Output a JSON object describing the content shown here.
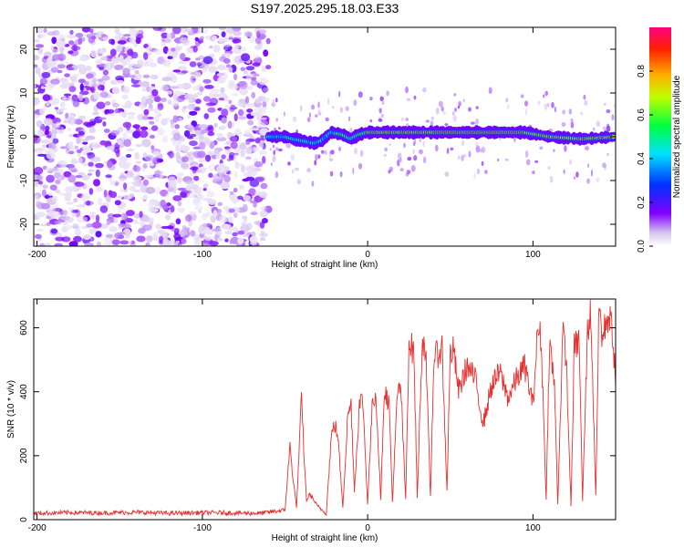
{
  "title": "S197.2025.295.18.03.E33",
  "chart_data": [
    {
      "type": "heatmap",
      "xlabel": "Height of straight line (km)",
      "ylabel": "Frequency (Hz)",
      "xlim": [
        -202,
        150
      ],
      "ylim": [
        -25,
        25
      ],
      "xticks": [
        -200,
        -100,
        0,
        100
      ],
      "yticks": [
        -20,
        -10,
        0,
        10,
        20
      ],
      "noise_region_x": [
        -202,
        -60
      ],
      "signal_ridge": [
        {
          "x": -60,
          "f": 0.0
        },
        {
          "x": -50,
          "f": 0.0
        },
        {
          "x": -45,
          "f": -0.5
        },
        {
          "x": -38,
          "f": -1.0
        },
        {
          "x": -32,
          "f": -1.5
        },
        {
          "x": -28,
          "f": -1.0
        },
        {
          "x": -22,
          "f": 1.0
        },
        {
          "x": -15,
          "f": 0.5
        },
        {
          "x": -10,
          "f": -0.5
        },
        {
          "x": -5,
          "f": 0.5
        },
        {
          "x": 0,
          "f": 1.0
        },
        {
          "x": 20,
          "f": 1.0
        },
        {
          "x": 60,
          "f": 1.0
        },
        {
          "x": 95,
          "f": 1.0
        },
        {
          "x": 110,
          "f": 0.0
        },
        {
          "x": 130,
          "f": -0.5
        },
        {
          "x": 150,
          "f": 0.0
        }
      ],
      "colorbar": {
        "label": "Normalized spectral amplitude",
        "ticks": [
          0.0,
          0.2,
          0.4,
          0.6,
          0.8
        ],
        "tick_labels": [
          "0.0",
          "0.2",
          "0.4",
          "0.6",
          "0.8"
        ],
        "range": [
          0,
          1
        ]
      }
    },
    {
      "type": "line",
      "xlabel": "Height of straight line (km)",
      "ylabel": "SNR (10 * v/v)",
      "xlim": [
        -202,
        150
      ],
      "ylim": [
        0,
        690
      ],
      "xticks": [
        -200,
        -100,
        0,
        100
      ],
      "yticks": [
        0,
        200,
        400,
        600
      ],
      "color": "#e8302f",
      "series": [
        {
          "name": "SNR",
          "x": [
            -202,
            -180,
            -160,
            -140,
            -120,
            -100,
            -80,
            -65,
            -50,
            -47,
            -45,
            -43,
            -40,
            -38,
            -37,
            -35,
            -30,
            -25,
            -22,
            -20,
            -18,
            -15,
            -12,
            -10,
            -8,
            -5,
            -3,
            0,
            3,
            5,
            8,
            10,
            13,
            15,
            18,
            20,
            23,
            25,
            28,
            30,
            33,
            35,
            38,
            40,
            45,
            48,
            50,
            52,
            55,
            60,
            65,
            70,
            75,
            80,
            85,
            90,
            95,
            100,
            103,
            105,
            108,
            110,
            113,
            115,
            118,
            120,
            123,
            125,
            128,
            130,
            133,
            135,
            138,
            140,
            142,
            145,
            148,
            150
          ],
          "y": [
            20,
            22,
            21,
            23,
            20,
            22,
            21,
            20,
            30,
            230,
            120,
            40,
            380,
            150,
            60,
            80,
            40,
            20,
            260,
            300,
            260,
            40,
            330,
            360,
            90,
            360,
            380,
            50,
            380,
            390,
            60,
            410,
            360,
            55,
            390,
            420,
            60,
            560,
            520,
            65,
            560,
            540,
            70,
            500,
            540,
            90,
            520,
            530,
            400,
            480,
            440,
            300,
            420,
            460,
            380,
            440,
            480,
            360,
            600,
            560,
            60,
            560,
            420,
            50,
            580,
            520,
            40,
            540,
            560,
            60,
            590,
            650,
            80,
            680,
            560,
            640,
            600,
            420
          ]
        }
      ]
    }
  ]
}
